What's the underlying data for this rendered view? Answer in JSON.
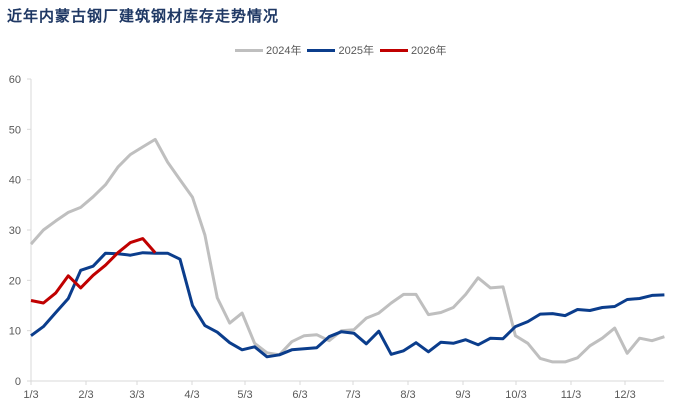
{
  "title": "近年内蒙古钢厂建筑钢材库存走势情况",
  "legend": [
    {
      "label": "2024年",
      "color": "#bfbfbf"
    },
    {
      "label": "2025年",
      "color": "#0b3d8c"
    },
    {
      "label": "2026年",
      "color": "#c00000"
    }
  ],
  "chart_data": {
    "type": "line",
    "title": "近年内蒙古钢厂建筑钢材库存走势情况",
    "xlabel": "",
    "ylabel": "",
    "ylim": [
      0,
      60
    ],
    "yticks": [
      0,
      10,
      20,
      30,
      40,
      50,
      60
    ],
    "categories": [
      "1/3",
      "2/3",
      "3/3",
      "4/3",
      "5/3",
      "6/3",
      "7/3",
      "8/3",
      "9/3",
      "10/3",
      "11/3",
      "12/3"
    ],
    "legend_position": "top",
    "grid": false,
    "series": [
      {
        "name": "2024年",
        "color": "#bfbfbf",
        "values": [
          27.2,
          30.0,
          31.8,
          33.5,
          34.5,
          36.6,
          39.0,
          42.5,
          45.0,
          46.5,
          48.0,
          43.5,
          40.0,
          36.5,
          29.0,
          16.5,
          11.5,
          13.5,
          7.5,
          5.6,
          5.2,
          7.8,
          9.0,
          9.2,
          8.0,
          10.0,
          10.2,
          12.5,
          13.5,
          15.5,
          17.2,
          17.2,
          13.2,
          13.6,
          14.6,
          17.2,
          20.5,
          18.5,
          18.7,
          9.0,
          7.5,
          4.5,
          3.8,
          3.8,
          4.6,
          7.0,
          8.5,
          10.5,
          5.5,
          8.5,
          8.0,
          8.8
        ]
      },
      {
        "name": "2025年",
        "color": "#0b3d8c",
        "values": [
          9.0,
          10.8,
          13.6,
          16.4,
          22.0,
          22.8,
          25.4,
          25.3,
          25.0,
          25.5,
          25.4,
          25.4,
          24.2,
          15.0,
          11.0,
          9.7,
          7.6,
          6.2,
          6.8,
          4.8,
          5.2,
          6.2,
          6.4,
          6.6,
          8.8,
          9.8,
          9.5,
          7.4,
          9.9,
          5.3,
          6.0,
          7.6,
          5.8,
          7.7,
          7.5,
          8.2,
          7.2,
          8.5,
          8.4,
          10.8,
          11.8,
          13.3,
          13.4,
          13.0,
          14.2,
          14.0,
          14.6,
          14.8,
          16.2,
          16.4,
          17.0,
          17.1
        ]
      },
      {
        "name": "2026年",
        "color": "#c00000",
        "values": [
          16.0,
          15.5,
          17.5,
          20.9,
          18.5,
          21.0,
          23.0,
          25.5,
          27.5,
          28.3,
          25.5
        ]
      }
    ]
  },
  "axis": {
    "y_labels": [
      "0",
      "10",
      "20",
      "30",
      "40",
      "50",
      "60"
    ],
    "x_labels": [
      "1/3",
      "2/3",
      "3/3",
      "4/3",
      "5/3",
      "6/3",
      "7/3",
      "8/3",
      "9/3",
      "10/3",
      "11/3",
      "12/3"
    ]
  }
}
